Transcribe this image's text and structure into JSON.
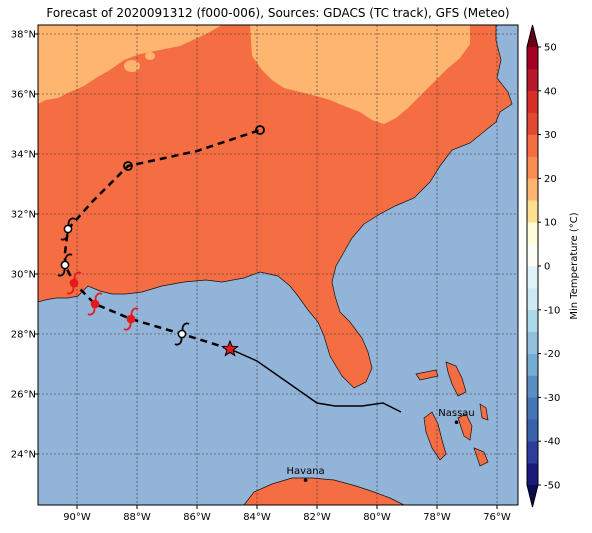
{
  "title": "Forecast of 2020091312 (f000-006), Sources: GDACS (TC track), GFS (Meteo)",
  "map": {
    "lon_range": [
      -91.3,
      -75.3
    ],
    "lat_range": [
      22.3,
      38.3
    ],
    "lon_ticks": [
      {
        "value": -90,
        "label": "90°W"
      },
      {
        "value": -88,
        "label": "88°W"
      },
      {
        "value": -86,
        "label": "86°W"
      },
      {
        "value": -84,
        "label": "84°W"
      },
      {
        "value": -82,
        "label": "82°W"
      },
      {
        "value": -80,
        "label": "80°W"
      },
      {
        "value": -78,
        "label": "78°W"
      },
      {
        "value": -76,
        "label": "76°W"
      }
    ],
    "lat_ticks": [
      {
        "value": 24,
        "label": "24°N"
      },
      {
        "value": 26,
        "label": "26°N"
      },
      {
        "value": 28,
        "label": "28°N"
      },
      {
        "value": 30,
        "label": "30°N"
      },
      {
        "value": 32,
        "label": "32°N"
      },
      {
        "value": 34,
        "label": "34°N"
      },
      {
        "value": 36,
        "label": "36°N"
      },
      {
        "value": 38,
        "label": "38°N"
      }
    ],
    "gridlines": true,
    "colors": {
      "ocean": "#92b4d9",
      "land_warm": "#f46d43",
      "land_cool": "#fdb56f",
      "track": "#000000",
      "forecast_symbol": "#e41a1c"
    },
    "cities": [
      {
        "name": "Nassau",
        "lon": -77.35,
        "lat": 25.06
      },
      {
        "name": "Havana",
        "lon": -82.38,
        "lat": 23.13
      }
    ]
  },
  "track": {
    "past": [
      [
        -79.2,
        25.4
      ],
      [
        -79.8,
        25.7
      ],
      [
        -80.5,
        25.6
      ],
      [
        -81.4,
        25.6
      ],
      [
        -82.0,
        25.7
      ],
      [
        -83.0,
        26.4
      ],
      [
        -84.0,
        27.1
      ],
      [
        -84.9,
        27.5
      ]
    ],
    "current": {
      "lon": -84.9,
      "lat": 27.5
    },
    "forecast": [
      [
        -84.9,
        27.5
      ],
      [
        -86.5,
        28.0
      ],
      [
        -88.2,
        28.5
      ],
      [
        -89.4,
        29.0
      ],
      [
        -90.1,
        29.7
      ],
      [
        -90.4,
        30.3
      ],
      [
        -90.4,
        30.7
      ],
      [
        -90.3,
        31.5
      ],
      [
        -89.5,
        32.4
      ],
      [
        -88.3,
        33.6
      ],
      [
        -86.0,
        34.1
      ],
      [
        -83.9,
        34.8
      ]
    ],
    "forecast_points": [
      {
        "lon": -86.5,
        "lat": 28.0,
        "symbol": "storm",
        "color": "black"
      },
      {
        "lon": -88.2,
        "lat": 28.5,
        "symbol": "storm",
        "color": "red"
      },
      {
        "lon": -89.4,
        "lat": 29.0,
        "symbol": "storm",
        "color": "red"
      },
      {
        "lon": -90.1,
        "lat": 29.7,
        "symbol": "storm",
        "color": "red"
      },
      {
        "lon": -90.4,
        "lat": 30.3,
        "symbol": "storm",
        "color": "black"
      },
      {
        "lon": -90.3,
        "lat": 31.5,
        "symbol": "storm",
        "color": "black"
      },
      {
        "lon": -88.3,
        "lat": 33.6,
        "symbol": "circle",
        "color": "black"
      },
      {
        "lon": -83.9,
        "lat": 34.8,
        "symbol": "circle",
        "color": "black"
      }
    ]
  },
  "colorbar": {
    "label": "Min Temperature (°C)",
    "range": [
      -50,
      50
    ],
    "ticks": [
      -50,
      -40,
      -30,
      -20,
      -10,
      0,
      10,
      20,
      30,
      40,
      50
    ],
    "bands": [
      {
        "from": -50,
        "to": -45,
        "color": "#1a1a7a"
      },
      {
        "from": -45,
        "to": -40,
        "color": "#2c3d9e"
      },
      {
        "from": -40,
        "to": -35,
        "color": "#3a62ab"
      },
      {
        "from": -35,
        "to": -30,
        "color": "#4575b4"
      },
      {
        "from": -30,
        "to": -25,
        "color": "#5b8ec0"
      },
      {
        "from": -25,
        "to": -20,
        "color": "#74add1"
      },
      {
        "from": -20,
        "to": -15,
        "color": "#92bfdb"
      },
      {
        "from": -15,
        "to": -10,
        "color": "#abd9e9"
      },
      {
        "from": -10,
        "to": -5,
        "color": "#cdeaf2"
      },
      {
        "from": -5,
        "to": 0,
        "color": "#e0f3f8"
      },
      {
        "from": 0,
        "to": 5,
        "color": "#fbfdf6"
      },
      {
        "from": 5,
        "to": 10,
        "color": "#fffcd9"
      },
      {
        "from": 10,
        "to": 15,
        "color": "#fee090"
      },
      {
        "from": 15,
        "to": 20,
        "color": "#fdb56f"
      },
      {
        "from": 20,
        "to": 25,
        "color": "#f88d52"
      },
      {
        "from": 25,
        "to": 30,
        "color": "#f46d43"
      },
      {
        "from": 30,
        "to": 35,
        "color": "#e04a33"
      },
      {
        "from": 35,
        "to": 40,
        "color": "#d73027"
      },
      {
        "from": 40,
        "to": 45,
        "color": "#b61a2b"
      },
      {
        "from": 45,
        "to": 50,
        "color": "#a50026"
      }
    ],
    "extend_min_color": "#0b0b50",
    "extend_max_color": "#6a0016"
  }
}
